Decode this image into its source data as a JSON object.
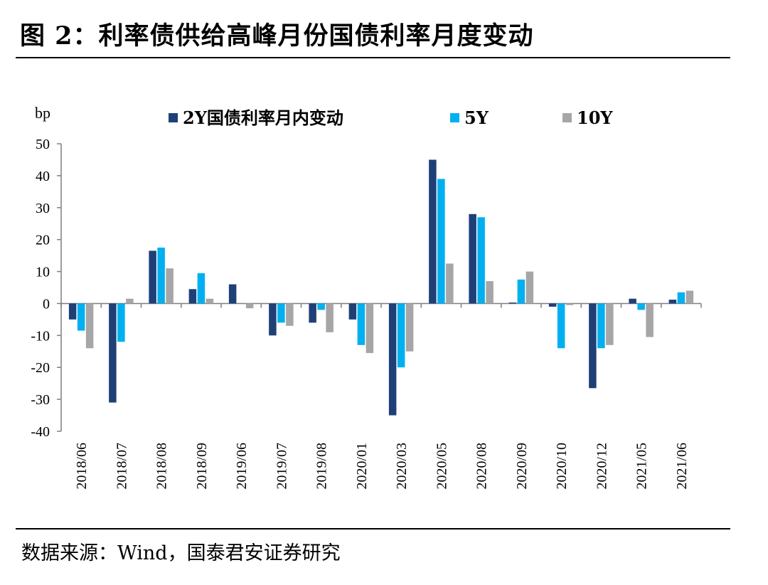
{
  "title": "图 2：利率债供给高峰月份国债利率月度变动",
  "source": "数据来源：Wind，国泰君安证券研究",
  "chart_data": {
    "type": "bar",
    "ylabel": "bp",
    "ylim": [
      -40,
      50
    ],
    "yticks": [
      50,
      40,
      30,
      20,
      10,
      0,
      -10,
      -20,
      -30,
      -40
    ],
    "legend_position": "top",
    "categories": [
      "2018/06",
      "2018/07",
      "2018/08",
      "2018/09",
      "2019/06",
      "2019/07",
      "2019/08",
      "2020/01",
      "2020/03",
      "2020/05",
      "2020/08",
      "2020/09",
      "2020/10",
      "2020/12",
      "2021/05",
      "2021/06"
    ],
    "series": [
      {
        "name": "2Y国债利率月内变动",
        "color": "#1f3f77",
        "values": [
          -5,
          -31,
          16.5,
          4.5,
          6,
          -10,
          -6,
          -5,
          -35,
          45,
          28,
          0.3,
          -1,
          -26.5,
          1.5,
          1.2
        ]
      },
      {
        "name": "5Y",
        "color": "#00b0f0",
        "values": [
          -8.5,
          -12,
          17.5,
          9.5,
          0,
          -6,
          -2,
          -13,
          -20,
          39,
          27,
          7.5,
          -14,
          -14,
          -2,
          3.5
        ]
      },
      {
        "name": "10Y",
        "color": "#a6a6a6",
        "values": [
          -14,
          1.5,
          11,
          1.5,
          -1.5,
          -7,
          -9,
          -15.5,
          -15,
          12.5,
          7,
          10,
          -0.5,
          -13,
          -10.5,
          4
        ]
      }
    ]
  }
}
